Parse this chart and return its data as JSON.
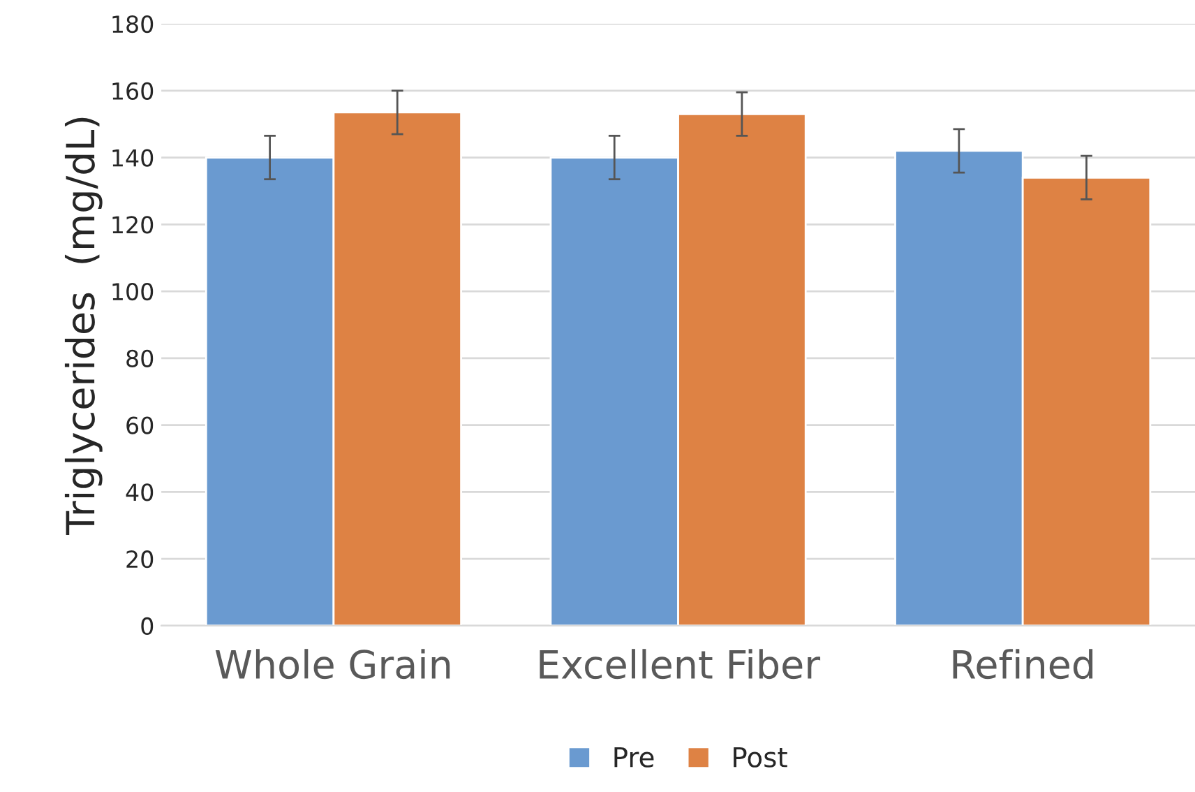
{
  "chart_data": {
    "type": "bar",
    "ylabel": "Triglycerides  (mg/dL)",
    "categories": [
      "Whole Grain",
      "Excellent Fiber",
      "Refined"
    ],
    "series": [
      {
        "name": "Pre",
        "color": "#6a9ad0",
        "values": [
          140,
          140,
          142
        ],
        "errors": [
          6.5,
          6.5,
          6.5
        ]
      },
      {
        "name": "Post",
        "color": "#de8244",
        "values": [
          153.5,
          153,
          134
        ],
        "errors": [
          6.5,
          6.5,
          6.5
        ]
      }
    ],
    "ylim": [
      0,
      180
    ],
    "yticks": [
      0,
      20,
      40,
      60,
      80,
      100,
      120,
      140,
      160,
      180
    ],
    "grid": "y",
    "legend": "bottom"
  }
}
